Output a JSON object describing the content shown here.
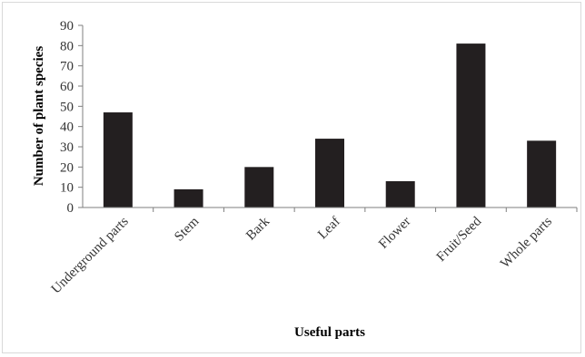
{
  "chart_data": {
    "type": "bar",
    "categories": [
      "Underground parts",
      "Stem",
      "Bark",
      "Leaf",
      "Flower",
      "Fruit/Seed",
      "Whole parts"
    ],
    "values": [
      47,
      9,
      20,
      34,
      13,
      81,
      33
    ],
    "title": "",
    "xlabel": "Useful parts",
    "ylabel": "Number of plant species",
    "ylim": [
      0,
      90
    ],
    "yticks": [
      0,
      10,
      20,
      30,
      40,
      50,
      60,
      70,
      80,
      90
    ],
    "grid": false,
    "legend": "none",
    "bar_color": "#231f20"
  }
}
